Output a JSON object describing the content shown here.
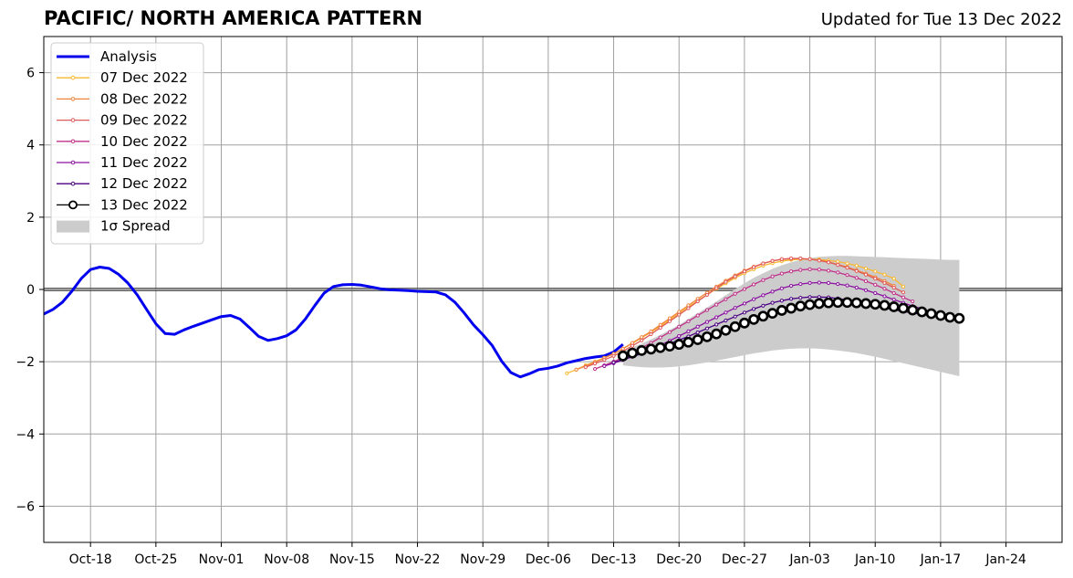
{
  "chart_data": {
    "type": "line",
    "title": "PACIFIC/ NORTH AMERICA PATTERN",
    "subtitle": "Updated for Tue 13 Dec 2022",
    "xlabel": "",
    "ylabel": "",
    "ylim": [
      -7,
      7
    ],
    "yticks": [
      -6,
      -4,
      -2,
      0,
      2,
      4,
      6
    ],
    "ytick_labels": [
      "−6",
      "−4",
      "−2",
      "0",
      "2",
      "4",
      "6"
    ],
    "xlim": [
      "2022-10-13",
      "2023-01-30"
    ],
    "xticks": [
      "2022-10-18",
      "2022-10-25",
      "2022-11-01",
      "2022-11-08",
      "2022-11-15",
      "2022-11-22",
      "2022-11-29",
      "2022-12-06",
      "2022-12-13",
      "2022-12-20",
      "2022-12-27",
      "2023-01-03",
      "2023-01-10",
      "2023-01-17",
      "2023-01-24"
    ],
    "xtick_labels": [
      "Oct-18",
      "Oct-25",
      "Nov-01",
      "Nov-08",
      "Nov-15",
      "Nov-22",
      "Nov-29",
      "Dec-06",
      "Dec-13",
      "Dec-20",
      "Dec-27",
      "Jan-03",
      "Jan-10",
      "Jan-17",
      "Jan-24"
    ],
    "grid": true,
    "legend_position": "top-left",
    "analysis": {
      "name": "Analysis",
      "color": "#0000ee",
      "start": "2022-10-13",
      "values": [
        -0.68,
        -0.55,
        -0.35,
        -0.05,
        0.3,
        0.55,
        0.62,
        0.58,
        0.42,
        0.18,
        -0.15,
        -0.55,
        -0.95,
        -1.22,
        -1.24,
        -1.12,
        -1.02,
        -0.93,
        -0.84,
        -0.75,
        -0.72,
        -0.82,
        -1.05,
        -1.3,
        -1.41,
        -1.36,
        -1.28,
        -1.12,
        -0.82,
        -0.45,
        -0.1,
        0.08,
        0.13,
        0.14,
        0.12,
        0.07,
        0.02,
        -0.01,
        -0.02,
        -0.03,
        -0.05,
        -0.06,
        -0.07,
        -0.15,
        -0.35,
        -0.65,
        -0.98,
        -1.25,
        -1.55,
        -1.98,
        -2.3,
        -2.42,
        -2.33,
        -2.22,
        -2.18,
        -2.12,
        -2.03,
        -1.97,
        -1.91,
        -1.87,
        -1.84,
        -1.73,
        -1.52
      ]
    },
    "series": [
      {
        "name": "07 Dec 2022",
        "color": "#f8b830",
        "start": "2022-12-08",
        "values": [
          -2.32,
          -2.22,
          -2.1,
          -2.0,
          -1.89,
          -1.78,
          -1.64,
          -1.49,
          -1.34,
          -1.18,
          -1.02,
          -0.84,
          -0.66,
          -0.48,
          -0.31,
          -0.15,
          0.02,
          0.17,
          0.32,
          0.45,
          0.56,
          0.66,
          0.73,
          0.78,
          0.82,
          0.84,
          0.84,
          0.83,
          0.8,
          0.77,
          0.72,
          0.66,
          0.58,
          0.5,
          0.41,
          0.3,
          0.08
        ]
      },
      {
        "name": "08 Dec 2022",
        "color": "#f0843c",
        "start": "2022-12-09",
        "values": [
          -2.22,
          -2.12,
          -2.01,
          -1.9,
          -1.78,
          -1.64,
          -1.48,
          -1.32,
          -1.16,
          -0.98,
          -0.8,
          -0.62,
          -0.44,
          -0.26,
          -0.09,
          0.08,
          0.24,
          0.39,
          0.52,
          0.63,
          0.72,
          0.79,
          0.83,
          0.85,
          0.85,
          0.84,
          0.81,
          0.76,
          0.69,
          0.62,
          0.53,
          0.44,
          0.34,
          0.23,
          0.1
        ]
      },
      {
        "name": "09 Dec 2022",
        "color": "#e05a5a",
        "start": "2022-12-10",
        "values": [
          -2.15,
          -2.05,
          -1.95,
          -1.84,
          -1.71,
          -1.56,
          -1.41,
          -1.24,
          -1.06,
          -0.88,
          -0.7,
          -0.52,
          -0.33,
          -0.15,
          0.04,
          0.21,
          0.36,
          0.5,
          0.62,
          0.72,
          0.79,
          0.84,
          0.86,
          0.86,
          0.84,
          0.8,
          0.75,
          0.68,
          0.6,
          0.51,
          0.41,
          0.3,
          0.18,
          0.05,
          -0.08
        ]
      },
      {
        "name": "10 Dec 2022",
        "color": "#c0308a",
        "start": "2022-12-11",
        "values": [
          -2.2,
          -2.1,
          -2.0,
          -1.88,
          -1.75,
          -1.62,
          -1.48,
          -1.33,
          -1.18,
          -1.03,
          -0.88,
          -0.72,
          -0.57,
          -0.42,
          -0.27,
          -0.12,
          0.01,
          0.14,
          0.26,
          0.36,
          0.44,
          0.5,
          0.54,
          0.56,
          0.55,
          0.52,
          0.47,
          0.4,
          0.32,
          0.23,
          0.13,
          0.02,
          -0.1,
          -0.22,
          -0.33
        ]
      },
      {
        "name": "11 Dec 2022",
        "color": "#8b10a0",
        "start": "2022-12-12",
        "values": [
          -2.12,
          -2.04,
          -1.95,
          -1.86,
          -1.76,
          -1.65,
          -1.54,
          -1.42,
          -1.29,
          -1.16,
          -1.03,
          -0.9,
          -0.77,
          -0.64,
          -0.51,
          -0.39,
          -0.27,
          -0.16,
          -0.06,
          0.03,
          0.1,
          0.15,
          0.18,
          0.19,
          0.18,
          0.15,
          0.11,
          0.05,
          -0.02,
          -0.1,
          -0.19,
          -0.28,
          -0.37,
          -0.46,
          -0.53
        ]
      },
      {
        "name": "12 Dec 2022",
        "color": "#4b0082",
        "start": "2022-12-13",
        "values": [
          -2.02,
          -1.94,
          -1.86,
          -1.78,
          -1.69,
          -1.6,
          -1.5,
          -1.4,
          -1.3,
          -1.19,
          -1.08,
          -0.97,
          -0.86,
          -0.75,
          -0.64,
          -0.54,
          -0.45,
          -0.37,
          -0.31,
          -0.26,
          -0.23,
          -0.21,
          -0.21,
          -0.22,
          -0.25,
          -0.29,
          -0.34,
          -0.39,
          -0.45,
          -0.51,
          -0.56,
          -0.61,
          -0.65,
          -0.69,
          -0.73
        ]
      },
      {
        "name": "13 Dec 2022",
        "color": "#000000",
        "start": "2022-12-14",
        "values": [
          -1.84,
          -1.76,
          -1.69,
          -1.65,
          -1.61,
          -1.57,
          -1.52,
          -1.46,
          -1.39,
          -1.31,
          -1.23,
          -1.13,
          -1.03,
          -0.93,
          -0.83,
          -0.74,
          -0.66,
          -0.58,
          -0.52,
          -0.46,
          -0.42,
          -0.39,
          -0.37,
          -0.36,
          -0.36,
          -0.37,
          -0.39,
          -0.41,
          -0.44,
          -0.48,
          -0.52,
          -0.57,
          -0.62,
          -0.67,
          -0.72,
          -0.77,
          -0.8
        ]
      }
    ],
    "spread": {
      "name": "1σ Spread",
      "color": "#cccccc",
      "start": "2022-12-14",
      "upper": [
        -1.72,
        -1.6,
        -1.5,
        -1.38,
        -1.26,
        -1.12,
        -0.98,
        -0.82,
        -0.66,
        -0.5,
        -0.33,
        -0.16,
        0.01,
        0.17,
        0.32,
        0.45,
        0.57,
        0.67,
        0.75,
        0.82,
        0.87,
        0.9,
        0.92,
        0.93,
        0.93,
        0.92,
        0.91,
        0.9,
        0.89,
        0.88,
        0.87,
        0.86,
        0.85,
        0.84,
        0.83,
        0.82,
        0.82
      ],
      "lower": [
        -2.1,
        -2.13,
        -2.15,
        -2.16,
        -2.16,
        -2.15,
        -2.13,
        -2.1,
        -2.06,
        -2.02,
        -1.97,
        -1.92,
        -1.87,
        -1.82,
        -1.77,
        -1.73,
        -1.69,
        -1.66,
        -1.64,
        -1.63,
        -1.63,
        -1.64,
        -1.66,
        -1.69,
        -1.72,
        -1.76,
        -1.81,
        -1.86,
        -1.92,
        -1.98,
        -2.04,
        -2.1,
        -2.16,
        -2.22,
        -2.28,
        -2.34,
        -2.4
      ]
    }
  }
}
